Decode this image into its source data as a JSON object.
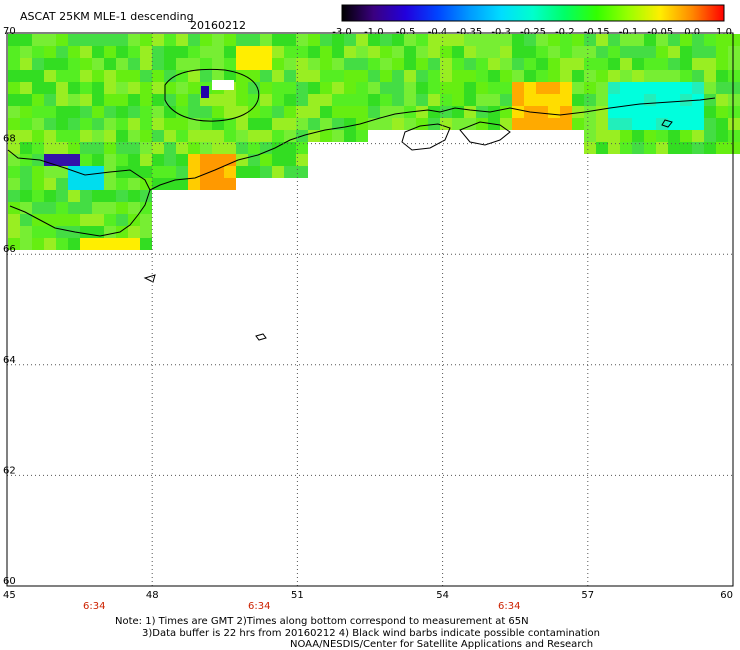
{
  "header": {
    "title": "ASCAT 25KM MLE-1 descending",
    "date": "20160212"
  },
  "colorbar": {
    "labels": [
      "-3.0",
      "-1.0",
      "-0.5",
      "-0.4",
      "-0.35",
      "-0.3",
      "-0.25",
      "-0.2",
      "-0.15",
      "-0.1",
      "-0.05",
      "0.0",
      "1.0"
    ],
    "colors": [
      "#000000",
      "#3a0080",
      "#2200dd",
      "#0044ff",
      "#0099ff",
      "#00ddff",
      "#00ffcc",
      "#00ff66",
      "#33ff00",
      "#99ff00",
      "#ffee00",
      "#ff8800",
      "#ff0000"
    ]
  },
  "axes": {
    "lon_ticks": [
      "45",
      "48",
      "51",
      "54",
      "57",
      "60"
    ],
    "lat_ticks": [
      "70",
      "68",
      "66",
      "64",
      "62",
      "60"
    ],
    "lon_range": [
      45,
      60
    ],
    "lat_range": [
      60,
      70
    ]
  },
  "time_labels": [
    "6:34",
    "6:34",
    "6:34"
  ],
  "notes": {
    "line1": "Note: 1) Times are GMT 2)Times along bottom correspond to measurement at 65N",
    "line2": "3)Data buffer is 22 hrs from 20160212 4) Black wind barbs indicate possible contamination",
    "line3": "NOAA/NESDIS/Center for Satellite Applications and Research"
  },
  "colors": {
    "gridline": "#555555",
    "coast": "#000000",
    "time_label": "#cc2200",
    "base_swath": "#55ee22"
  }
}
